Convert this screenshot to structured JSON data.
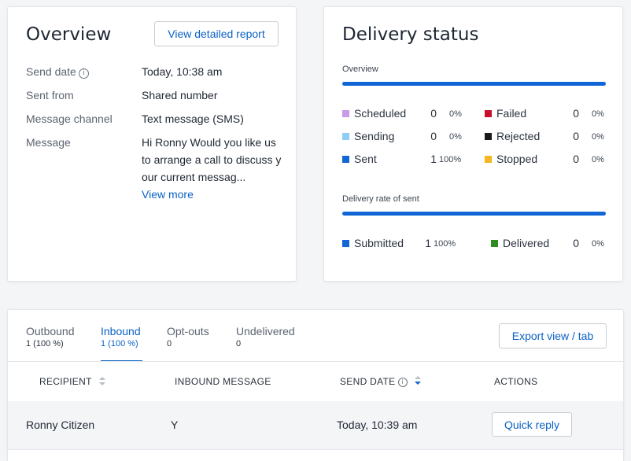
{
  "overview": {
    "title": "Overview",
    "report_button": "View detailed report",
    "fields": [
      {
        "label": "Send date",
        "value": "Today, 10:38 am"
      },
      {
        "label": "Sent from",
        "value": "Shared number"
      },
      {
        "label": "Message channel",
        "value": "Text message (SMS)"
      },
      {
        "label": "Message",
        "value_lines": [
          "Hi Ronny Would you like us",
          "to arrange a call to discuss y",
          "our current messag..."
        ]
      }
    ],
    "view_more": "View more"
  },
  "delivery": {
    "title": "Delivery status",
    "overview_label": "Overview",
    "overview_fill": 1.0,
    "stats": [
      {
        "name": "Scheduled",
        "count": "0",
        "pct": "0%",
        "color": "#c79be6"
      },
      {
        "name": "Failed",
        "count": "0",
        "pct": "0%",
        "color": "#c8102e"
      },
      {
        "name": "Sending",
        "count": "0",
        "pct": "0%",
        "color": "#8fcdf5"
      },
      {
        "name": "Rejected",
        "count": "0",
        "pct": "0%",
        "color": "#1a1a1a"
      },
      {
        "name": "Sent",
        "count": "1",
        "pct": "100%",
        "color": "#1366d6"
      },
      {
        "name": "Stopped",
        "count": "0",
        "pct": "0%",
        "color": "#f5b61e"
      }
    ],
    "rate_label": "Delivery rate of sent",
    "rate_fill": 1.0,
    "rate_stats": [
      {
        "name": "Submitted",
        "count": "1",
        "pct": "100%",
        "color": "#1366d6"
      },
      {
        "name": "Delivered",
        "count": "0",
        "pct": "0%",
        "color": "#2e8b22"
      }
    ]
  },
  "tabs": [
    {
      "name": "Outbound",
      "sub": "1 (100 %)"
    },
    {
      "name": "Inbound",
      "sub": "1 (100 %)"
    },
    {
      "name": "Opt-outs",
      "sub": "0"
    },
    {
      "name": "Undelivered",
      "sub": "0"
    }
  ],
  "export_button": "Export view / tab",
  "table": {
    "headers": [
      "RECIPIENT",
      "INBOUND MESSAGE",
      "SEND DATE",
      "ACTIONS"
    ],
    "rows": [
      {
        "recipient": "Ronny Citizen",
        "message": "Y",
        "send_date": "Today, 10:39 am",
        "action": "Quick reply"
      }
    ]
  }
}
